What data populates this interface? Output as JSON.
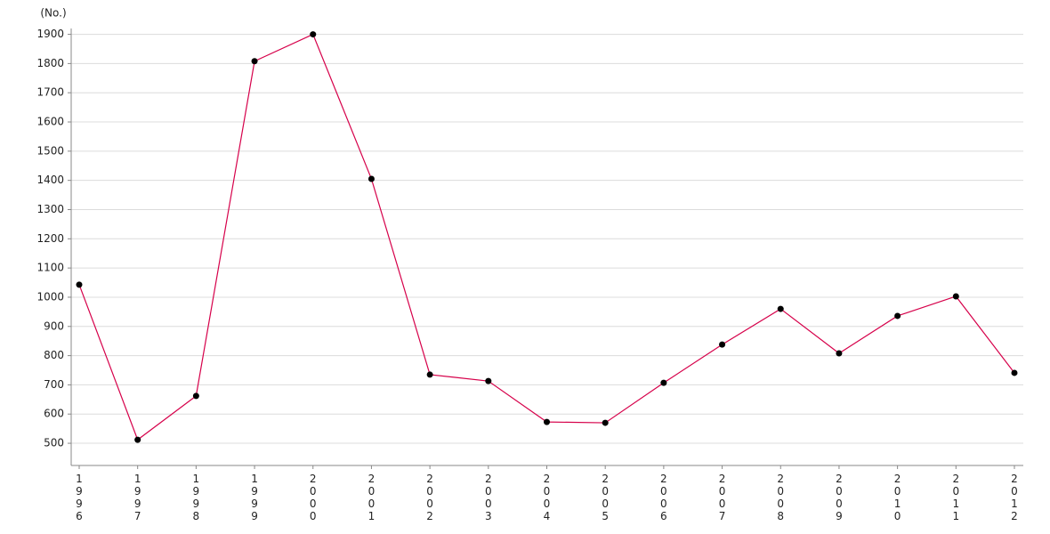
{
  "chart_data": {
    "type": "line",
    "y_unit": "(No.)",
    "categories": [
      "1996",
      "1997",
      "1998",
      "1999",
      "2000",
      "2001",
      "2002",
      "2003",
      "2004",
      "2005",
      "2006",
      "2007",
      "2008",
      "2009",
      "2010",
      "2011",
      "2012"
    ],
    "series": [
      {
        "color": "#d6004a",
        "values": [
          1043,
          512,
          662,
          1808,
          1900,
          1405,
          735,
          713,
          573,
          570,
          707,
          838,
          960,
          808,
          936,
          1003,
          741
        ]
      }
    ],
    "ylim": [
      424,
      1920
    ],
    "yticks": [
      500,
      600,
      700,
      800,
      900,
      1000,
      1100,
      1200,
      1300,
      1400,
      1500,
      1600,
      1700,
      1800,
      1900
    ],
    "grid": true
  }
}
